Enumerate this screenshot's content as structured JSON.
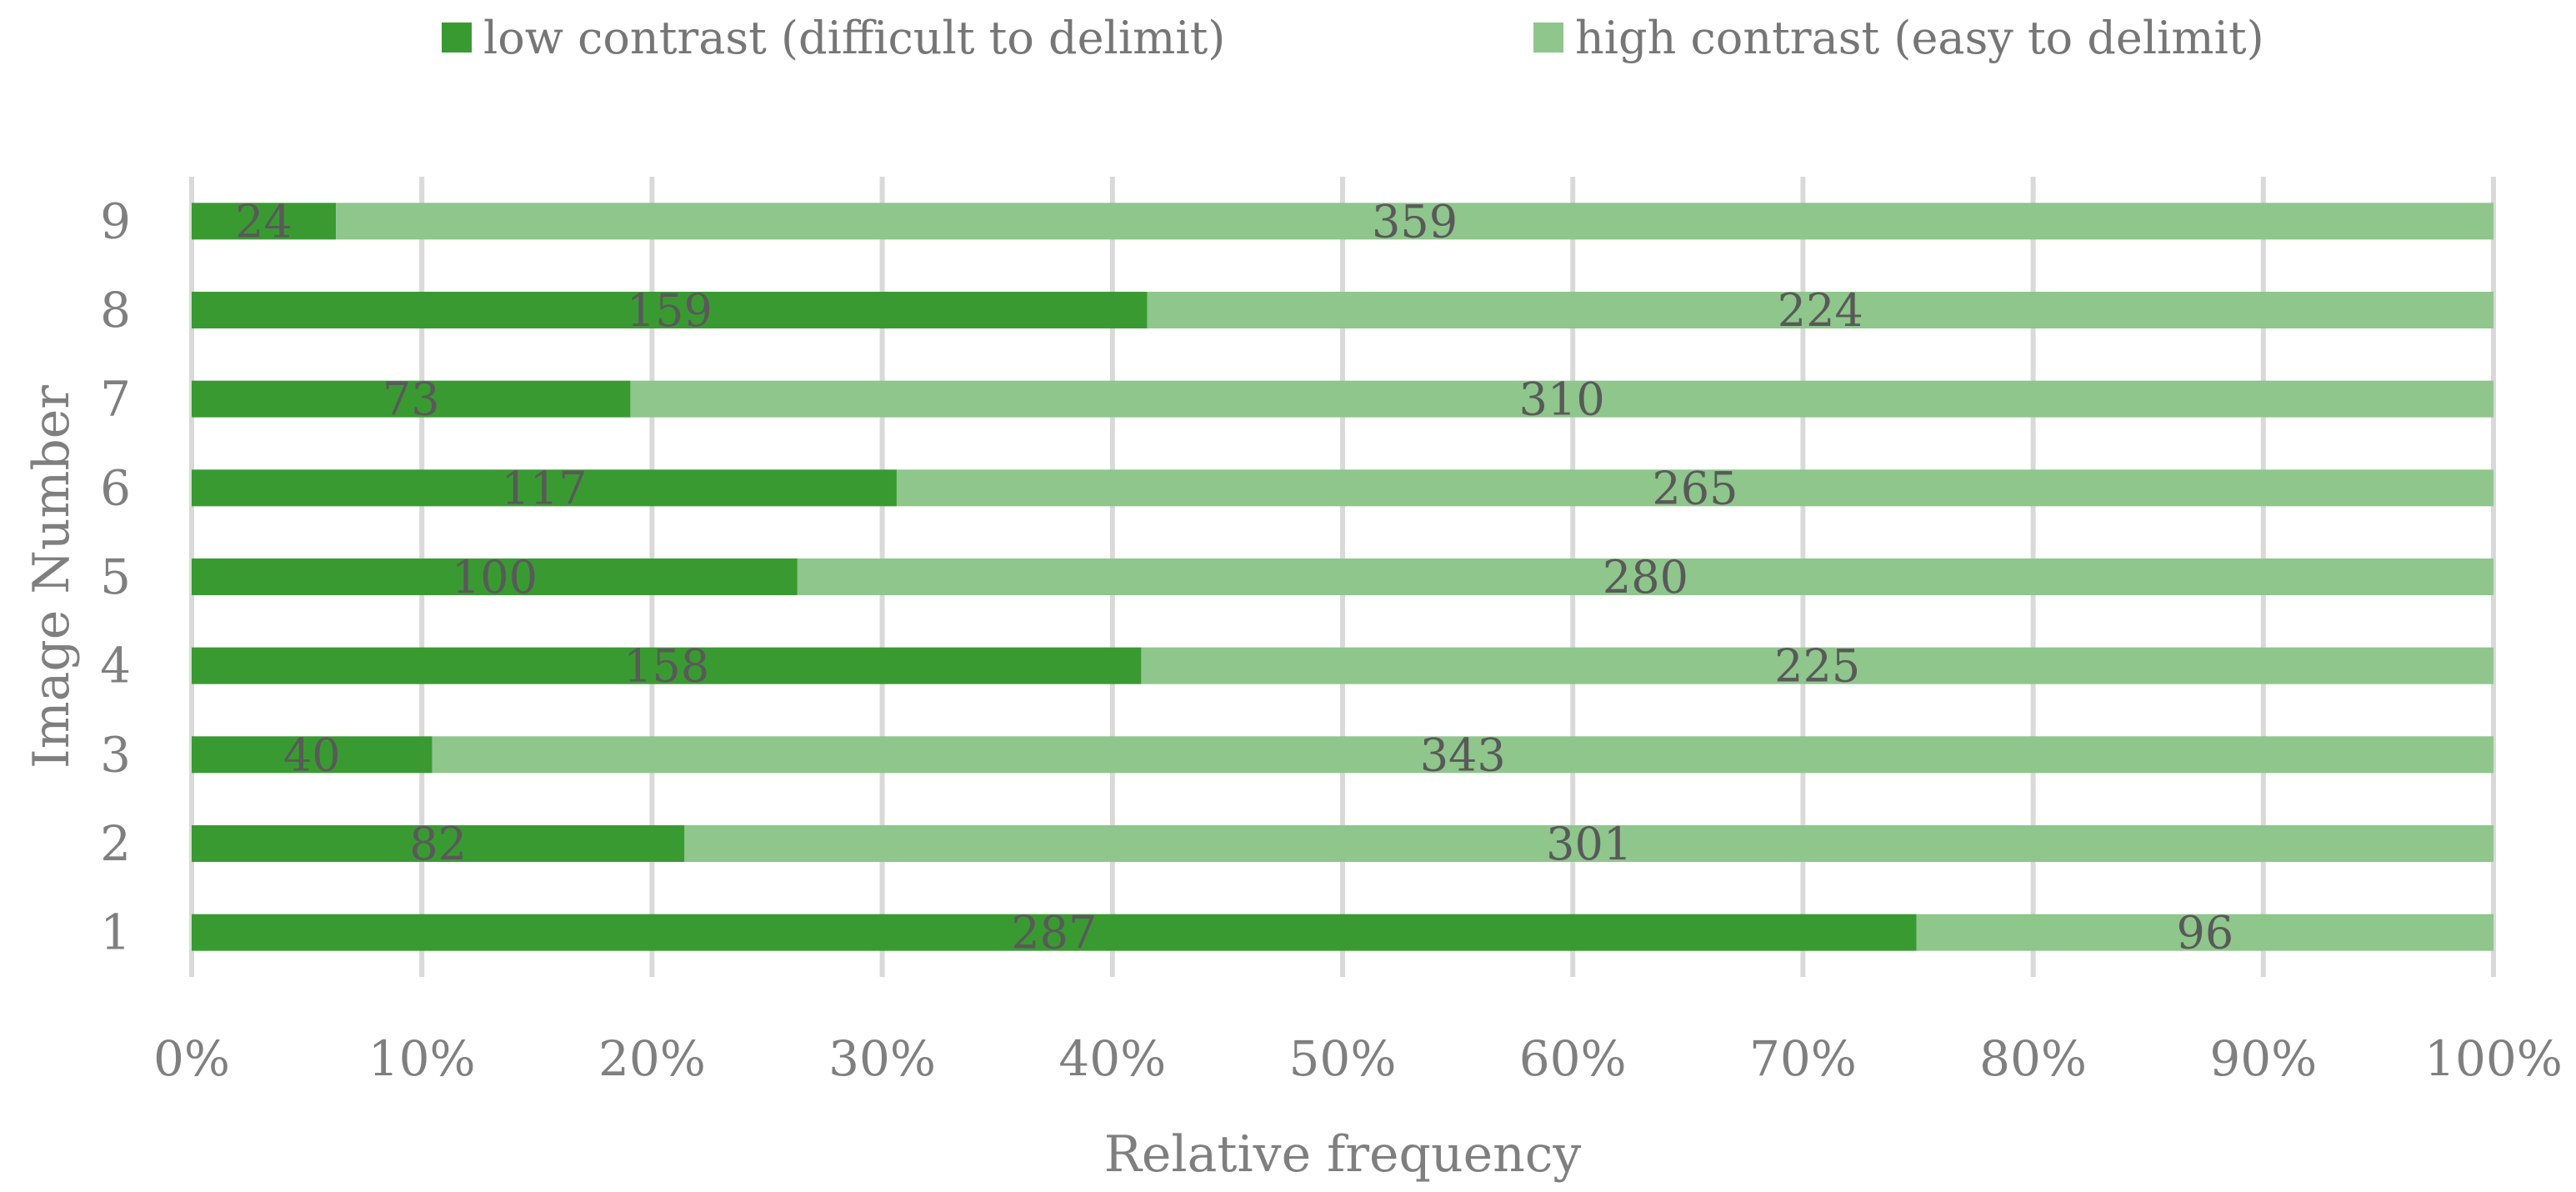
{
  "chart_data": {
    "type": "bar",
    "orientation": "horizontal",
    "stacking": "percent",
    "title": "",
    "categories": [
      "1",
      "2",
      "3",
      "4",
      "5",
      "6",
      "7",
      "8",
      "9"
    ],
    "series": [
      {
        "name": "low contrast (difficult to delimit)",
        "color": "#3a9a32",
        "values": [
          287,
          82,
          40,
          158,
          100,
          117,
          73,
          159,
          24
        ]
      },
      {
        "name": "high contrast (easy to delimit)",
        "color": "#8ec68c",
        "values": [
          96,
          301,
          343,
          225,
          280,
          265,
          310,
          224,
          359
        ]
      }
    ],
    "xlabel": "Relative frequency",
    "ylabel": "Image Number",
    "xlim": [
      0,
      100
    ],
    "xticks": [
      "0%",
      "10%",
      "20%",
      "30%",
      "40%",
      "50%",
      "60%",
      "70%",
      "80%",
      "90%",
      "100%"
    ],
    "grid": "vertical",
    "legend_position": "top"
  }
}
